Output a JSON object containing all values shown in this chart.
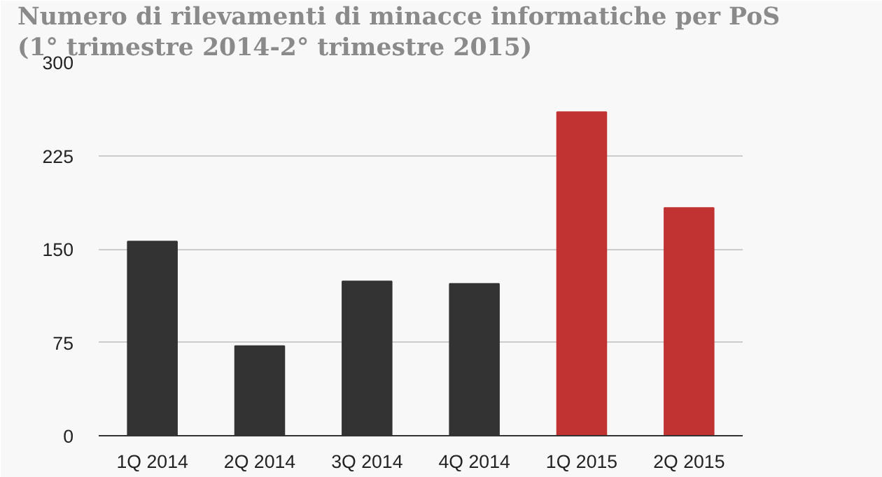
{
  "chart_data": {
    "type": "bar",
    "title": "Numero di rilevamenti di minacce informatiche per PoS",
    "subtitle": "(1° trimestre 2014-2° trimestre 2015)",
    "categories": [
      "1Q 2014",
      "2Q 2014",
      "3Q 2014",
      "4Q 2014",
      "1Q 2015",
      "2Q 2015"
    ],
    "values": [
      156,
      72,
      124,
      122,
      260,
      183
    ],
    "colors": [
      "#333333",
      "#333333",
      "#333333",
      "#333333",
      "#c13333",
      "#c13333"
    ],
    "ylim": [
      0,
      300
    ],
    "yticks": [
      0,
      75,
      150,
      225,
      300
    ],
    "grid": "y"
  }
}
